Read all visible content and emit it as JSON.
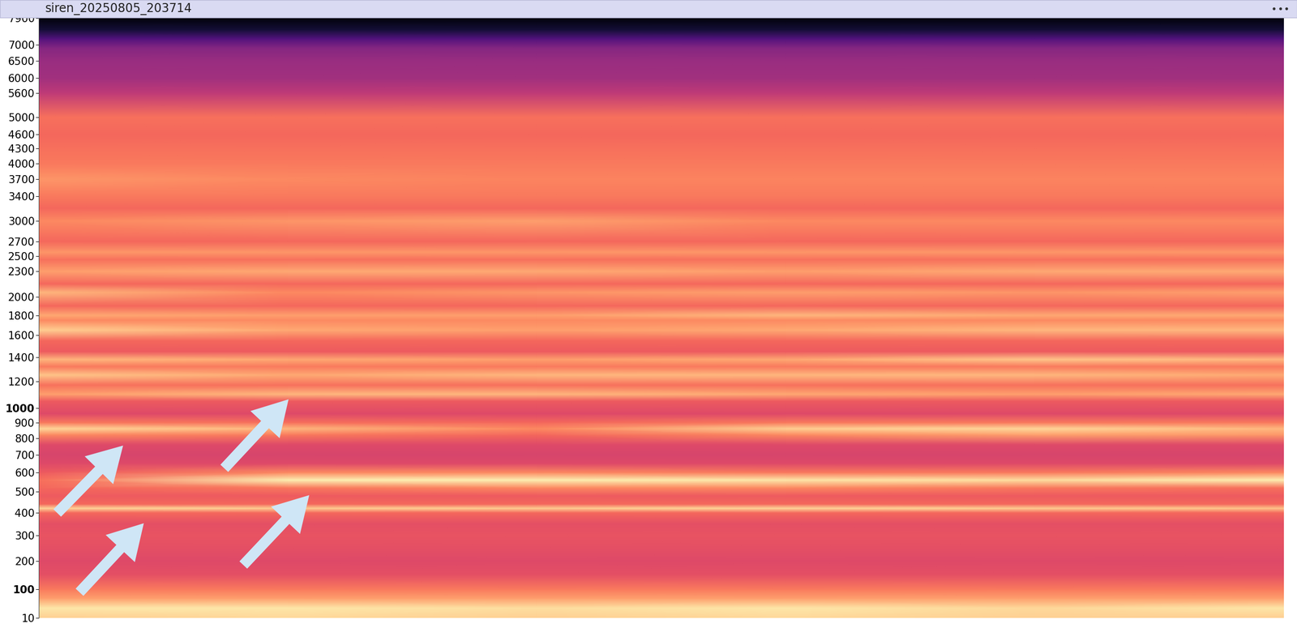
{
  "chart_data": {
    "type": "spectrogram",
    "title": "siren_20250805_203714",
    "ylim": [
      10,
      7900
    ],
    "yticks": [
      10,
      100,
      200,
      300,
      400,
      500,
      600,
      700,
      800,
      900,
      1000,
      1200,
      1400,
      1600,
      1800,
      2000,
      2300,
      2500,
      2700,
      3000,
      3400,
      3700,
      4000,
      4300,
      4600,
      5000,
      5600,
      6000,
      6500,
      7000,
      7900
    ],
    "tick_labels": "y",
    "grid": false,
    "color_range": [
      0,
      1
    ],
    "frequencies": [
      10,
      40,
      70,
      100,
      150,
      200,
      250,
      300,
      350,
      400,
      420,
      440,
      480,
      520,
      560,
      600,
      650,
      700,
      760,
      820,
      860,
      900,
      960,
      1050,
      1100,
      1170,
      1250,
      1320,
      1380,
      1450,
      1550,
      1650,
      1750,
      1800,
      1900,
      2050,
      2150,
      2300,
      2450,
      2550,
      2700,
      3000,
      3200,
      3400,
      3700,
      4000,
      4300,
      4600,
      5000,
      5600,
      6000,
      6500,
      6900,
      7200,
      7500,
      7900
    ],
    "cells": [
      [
        0.9,
        0.92,
        0.9,
        0.92,
        0.9,
        0.9
      ],
      [
        0.95,
        0.95,
        0.93,
        0.95,
        0.92,
        0.95
      ],
      [
        0.8,
        0.8,
        0.8,
        0.8,
        0.8,
        0.8
      ],
      [
        0.72,
        0.72,
        0.72,
        0.72,
        0.72,
        0.72
      ],
      [
        0.62,
        0.62,
        0.62,
        0.62,
        0.62,
        0.62
      ],
      [
        0.6,
        0.6,
        0.6,
        0.6,
        0.6,
        0.6
      ],
      [
        0.62,
        0.62,
        0.62,
        0.62,
        0.62,
        0.62
      ],
      [
        0.63,
        0.63,
        0.63,
        0.63,
        0.63,
        0.63
      ],
      [
        0.62,
        0.62,
        0.62,
        0.62,
        0.62,
        0.62
      ],
      [
        0.68,
        0.68,
        0.68,
        0.68,
        0.68,
        0.68
      ],
      [
        0.92,
        0.9,
        0.9,
        0.92,
        0.9,
        0.88
      ],
      [
        0.68,
        0.68,
        0.68,
        0.68,
        0.68,
        0.68
      ],
      [
        0.65,
        0.65,
        0.65,
        0.65,
        0.65,
        0.65
      ],
      [
        0.68,
        0.72,
        0.75,
        0.75,
        0.72,
        0.7
      ],
      [
        0.7,
        0.97,
        0.97,
        0.95,
        0.93,
        0.97
      ],
      [
        0.65,
        0.75,
        0.75,
        0.72,
        0.72,
        0.75
      ],
      [
        0.6,
        0.6,
        0.6,
        0.6,
        0.6,
        0.6
      ],
      [
        0.58,
        0.58,
        0.58,
        0.58,
        0.58,
        0.58
      ],
      [
        0.6,
        0.6,
        0.6,
        0.6,
        0.6,
        0.6
      ],
      [
        0.75,
        0.72,
        0.68,
        0.75,
        0.8,
        0.78
      ],
      [
        0.92,
        0.85,
        0.75,
        0.9,
        0.92,
        0.85
      ],
      [
        0.72,
        0.7,
        0.68,
        0.72,
        0.72,
        0.72
      ],
      [
        0.6,
        0.6,
        0.6,
        0.6,
        0.6,
        0.6
      ],
      [
        0.65,
        0.65,
        0.65,
        0.65,
        0.65,
        0.65
      ],
      [
        0.8,
        0.85,
        0.85,
        0.82,
        0.8,
        0.82
      ],
      [
        0.7,
        0.7,
        0.7,
        0.7,
        0.7,
        0.7
      ],
      [
        0.88,
        0.82,
        0.85,
        0.85,
        0.85,
        0.82
      ],
      [
        0.72,
        0.72,
        0.72,
        0.72,
        0.72,
        0.72
      ],
      [
        0.85,
        0.82,
        0.8,
        0.82,
        0.88,
        0.85
      ],
      [
        0.65,
        0.65,
        0.65,
        0.65,
        0.65,
        0.65
      ],
      [
        0.68,
        0.68,
        0.68,
        0.68,
        0.68,
        0.68
      ],
      [
        0.9,
        0.82,
        0.8,
        0.82,
        0.85,
        0.85
      ],
      [
        0.75,
        0.75,
        0.75,
        0.75,
        0.75,
        0.75
      ],
      [
        0.82,
        0.8,
        0.8,
        0.85,
        0.82,
        0.82
      ],
      [
        0.68,
        0.68,
        0.68,
        0.68,
        0.68,
        0.68
      ],
      [
        0.85,
        0.75,
        0.78,
        0.8,
        0.78,
        0.8
      ],
      [
        0.68,
        0.68,
        0.68,
        0.68,
        0.68,
        0.68
      ],
      [
        0.8,
        0.82,
        0.82,
        0.8,
        0.82,
        0.82
      ],
      [
        0.7,
        0.7,
        0.7,
        0.7,
        0.7,
        0.7
      ],
      [
        0.78,
        0.78,
        0.78,
        0.78,
        0.78,
        0.78
      ],
      [
        0.68,
        0.68,
        0.68,
        0.68,
        0.68,
        0.68
      ],
      [
        0.75,
        0.78,
        0.8,
        0.75,
        0.75,
        0.75
      ],
      [
        0.68,
        0.68,
        0.68,
        0.68,
        0.68,
        0.68
      ],
      [
        0.72,
        0.72,
        0.72,
        0.72,
        0.72,
        0.72
      ],
      [
        0.78,
        0.75,
        0.74,
        0.74,
        0.74,
        0.74
      ],
      [
        0.72,
        0.72,
        0.72,
        0.72,
        0.72,
        0.72
      ],
      [
        0.7,
        0.7,
        0.7,
        0.7,
        0.7,
        0.7
      ],
      [
        0.68,
        0.68,
        0.68,
        0.68,
        0.68,
        0.68
      ],
      [
        0.7,
        0.7,
        0.7,
        0.7,
        0.7,
        0.7
      ],
      [
        0.52,
        0.52,
        0.52,
        0.52,
        0.52,
        0.52
      ],
      [
        0.45,
        0.45,
        0.45,
        0.45,
        0.45,
        0.45
      ],
      [
        0.43,
        0.43,
        0.43,
        0.43,
        0.43,
        0.43
      ],
      [
        0.38,
        0.38,
        0.38,
        0.38,
        0.38,
        0.38
      ],
      [
        0.25,
        0.25,
        0.25,
        0.25,
        0.25,
        0.25
      ],
      [
        0.1,
        0.1,
        0.1,
        0.1,
        0.1,
        0.1
      ],
      [
        0.02,
        0.02,
        0.02,
        0.02,
        0.02,
        0.02
      ]
    ]
  }
}
